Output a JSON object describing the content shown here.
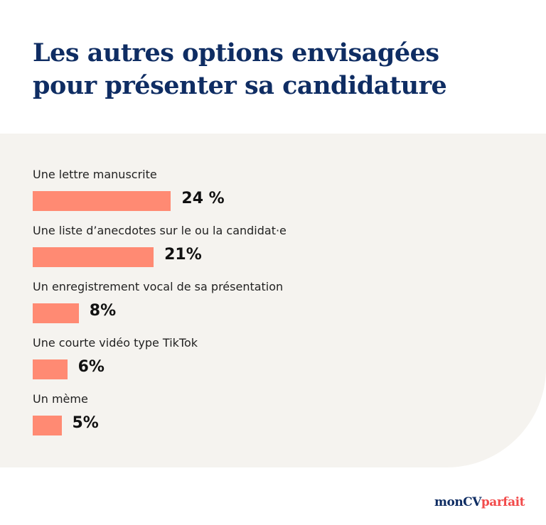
{
  "title_lines": [
    "Les autres options envisagées",
    "pour présenter sa candidature"
  ],
  "chart_data": {
    "type": "bar",
    "orientation": "horizontal",
    "title": "Les autres options envisagées pour présenter sa candidature",
    "categories": [
      "Une lettre manuscrite",
      "Une liste d’anecdotes sur le ou la candidat·e",
      "Un enregistrement vocal de sa présentation",
      "Une courte vidéo type TikTok",
      "Un mème"
    ],
    "values": [
      24,
      21,
      8,
      6,
      5
    ],
    "data_labels": [
      "24 %",
      "21%",
      "8%",
      "6%",
      "5%"
    ],
    "unit": "%",
    "grid": false,
    "bar_color": "#ff8a73"
  },
  "logo": {
    "part1": "monCV",
    "part2": "parfait"
  },
  "colors": {
    "title": "#0f2d63",
    "panel": "#f5f3ef",
    "logo_accent": "#f24b4b"
  }
}
